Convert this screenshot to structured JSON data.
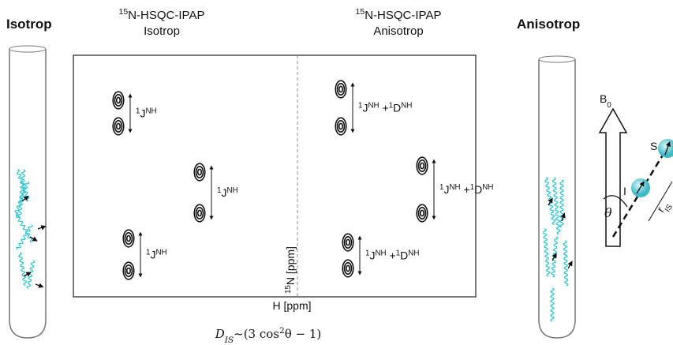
{
  "left_label": "Isotrop",
  "right_label": "Anisotrop",
  "spectra": [
    {
      "title": [
        {
          "text": "15",
          "sup": true
        },
        {
          "text": "N-HSQC-IPAP"
        }
      ],
      "subtitle": "Isotrop",
      "peaks": [
        {
          "label": [
            {
              "text": "1",
              "sup": true
            },
            {
              "text": "J"
            },
            {
              "text": "NH",
              "sup": true
            }
          ]
        },
        {
          "label": [
            {
              "text": "1",
              "sup": true
            },
            {
              "text": "J"
            },
            {
              "text": "NH",
              "sup": true
            }
          ]
        },
        {
          "label": [
            {
              "text": "1",
              "sup": true
            },
            {
              "text": "J"
            },
            {
              "text": "NH",
              "sup": true
            }
          ]
        }
      ]
    },
    {
      "title": [
        {
          "text": "15",
          "sup": true
        },
        {
          "text": "N-HSQC-IPAP"
        }
      ],
      "subtitle": "Anisotrop",
      "peaks": [
        {
          "label": [
            {
              "text": "1",
              "sup": true
            },
            {
              "text": "J"
            },
            {
              "text": "NH",
              "sup": true
            },
            {
              "text": " +"
            },
            {
              "text": "1",
              "sup": true
            },
            {
              "text": "D"
            },
            {
              "text": "NH",
              "sup": true
            }
          ]
        },
        {
          "label": [
            {
              "text": "1",
              "sup": true
            },
            {
              "text": "J"
            },
            {
              "text": "NH",
              "sup": true
            },
            {
              "text": " +"
            },
            {
              "text": "1",
              "sup": true
            },
            {
              "text": "D"
            },
            {
              "text": "NH",
              "sup": true
            }
          ]
        },
        {
          "label": [
            {
              "text": "1",
              "sup": true
            },
            {
              "text": "J"
            },
            {
              "text": "NH",
              "sup": true
            },
            {
              "text": " +"
            },
            {
              "text": "1",
              "sup": true
            },
            {
              "text": "D"
            },
            {
              "text": "NH",
              "sup": true
            }
          ]
        }
      ]
    }
  ],
  "x_axis_label": "H [ppm]",
  "y_axis_label": [
    {
      "text": "15",
      "sup": true
    },
    {
      "text": "N [ppm]"
    }
  ],
  "vector": {
    "field": [
      {
        "text": "B"
      },
      {
        "text": "0",
        "sub": true
      }
    ],
    "spin_s": "S",
    "spin_i": "I",
    "distance": [
      {
        "text": "r"
      },
      {
        "text": "IS",
        "sub": true
      }
    ],
    "angle": "θ"
  },
  "formula": [
    {
      "text": "D",
      "italic": true
    },
    {
      "text": "IS",
      "sub": true,
      "italic": true
    },
    {
      "text": "~(3 cos"
    },
    {
      "text": "2",
      "sup": true
    },
    {
      "text": "θ − 1)",
      "italic": false
    }
  ]
}
